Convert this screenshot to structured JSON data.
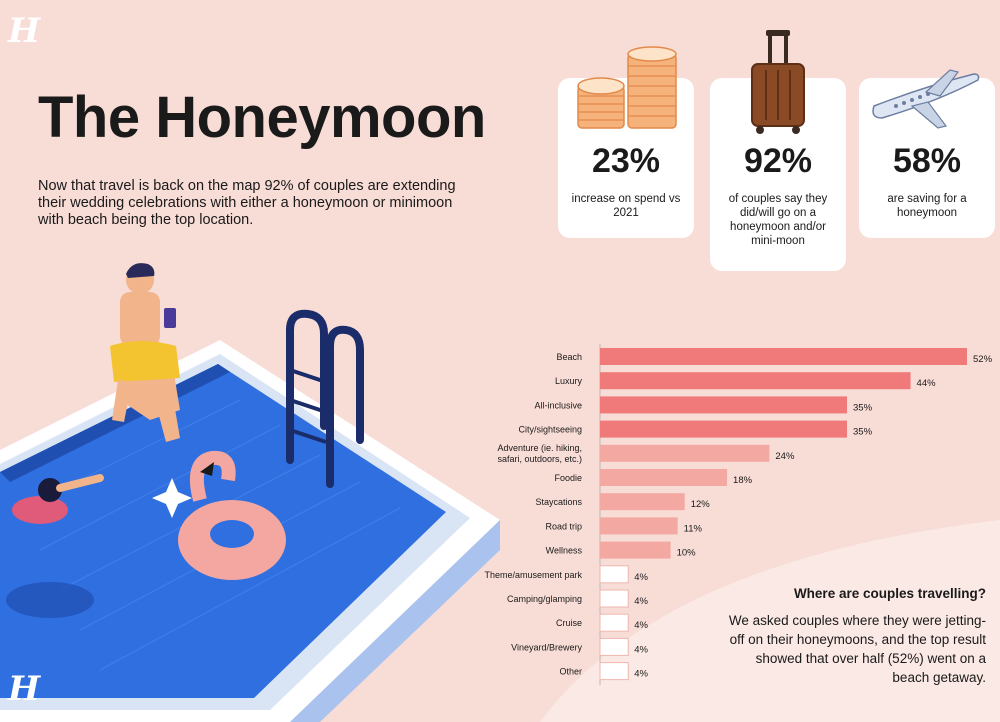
{
  "brand": {
    "logo_text": "H"
  },
  "header": {
    "title": "The Honeymoon",
    "intro": "Now that travel is back on the map 92% of couples are extending their wedding celebrations with either a honeymoon or minimoon with beach being the top location."
  },
  "stats": [
    {
      "value": "23%",
      "desc": "increase on spend vs 2021",
      "icon": "coin-stacks-icon"
    },
    {
      "value": "92%",
      "desc": "of couples say they did/will go on a honeymoon and/or mini-moon",
      "icon": "suitcase-icon"
    },
    {
      "value": "58%",
      "desc": "are saving for a honeymoon",
      "icon": "airplane-icon"
    }
  ],
  "note": {
    "title": "Where are couples travelling?",
    "body": "We asked couples where they were jetting-off on their honeymoons, and the top result showed that over half (52%) went on a beach getaway."
  },
  "colors": {
    "background": "#f8dcd6",
    "bar_dark": "#f07a7a",
    "bar_light": "#f4a8a2",
    "bar_outline": "#f0b6b0",
    "pool_blue": "#2f6fe0"
  },
  "chart_data": {
    "type": "bar",
    "orientation": "horizontal",
    "categories": [
      "Beach",
      "Luxury",
      "All-inclusive",
      "City/sightseeing",
      "Adventure (ie. hiking, safari, outdoors, etc.)",
      "Foodie",
      "Staycations",
      "Road trip",
      "Wellness",
      "Theme/amusement park",
      "Camping/glamping",
      "Cruise",
      "Vineyard/Brewery",
      "Other"
    ],
    "values": [
      52,
      44,
      35,
      35,
      24,
      18,
      12,
      11,
      10,
      4,
      4,
      4,
      4,
      4
    ],
    "value_labels": [
      "52%",
      "44%",
      "35%",
      "35%",
      "24%",
      "18%",
      "12%",
      "11%",
      "10%",
      "4%",
      "4%",
      "4%",
      "4%",
      "4%"
    ],
    "unit": "%",
    "xlim": [
      0,
      52
    ],
    "grid": false
  }
}
